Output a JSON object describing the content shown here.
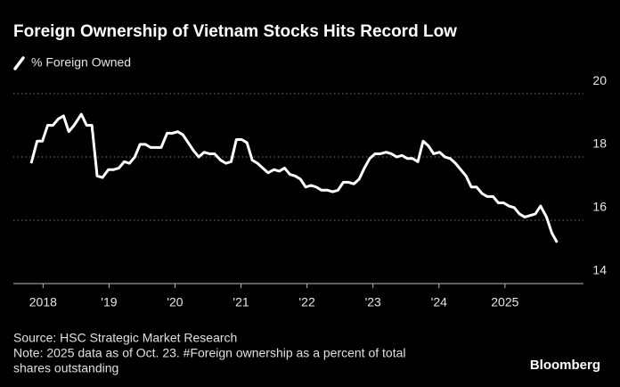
{
  "chart_data": {
    "type": "line",
    "title": "Foreign Ownership of Vietnam Stocks Hits Record Low",
    "source": "Source: HSC Strategic Market Research",
    "notes": [
      "Note: 2025 data as of Oct. 23. #Foreign ownership as a percent of total",
      "shares outstanding"
    ],
    "brand": "Bloomberg",
    "x": [
      2017.82,
      2017.91,
      2017.99,
      2018.07,
      2018.15,
      2018.23,
      2018.31,
      2018.39,
      2018.47,
      2018.58,
      2018.66,
      2018.74,
      2018.82,
      2018.9,
      2018.99,
      2019.07,
      2019.15,
      2019.23,
      2019.31,
      2019.39,
      2019.47,
      2019.55,
      2019.63,
      2019.71,
      2019.79,
      2019.88,
      2019.96,
      2020.04,
      2020.12,
      2020.2,
      2020.28,
      2020.36,
      2020.44,
      2020.52,
      2020.6,
      2020.69,
      2020.77,
      2020.85,
      2020.93,
      2021.01,
      2021.09,
      2021.17,
      2021.25,
      2021.33,
      2021.41,
      2021.5,
      2021.58,
      2021.66,
      2021.74,
      2021.82,
      2021.9,
      2021.98,
      2022.06,
      2022.14,
      2022.22,
      2022.31,
      2022.39,
      2022.47,
      2022.55,
      2022.63,
      2022.71,
      2022.79,
      2022.87,
      2022.95,
      2023.03,
      2023.11,
      2023.2,
      2023.28,
      2023.36,
      2023.44,
      2023.52,
      2023.6,
      2023.68,
      2023.76,
      2023.84,
      2023.92,
      2024.01,
      2024.09,
      2024.17,
      2024.25,
      2024.33,
      2024.41,
      2024.49,
      2024.57,
      2024.65,
      2024.73,
      2024.82,
      2024.9,
      2024.98,
      2025.06,
      2025.14,
      2025.22,
      2025.3,
      2025.38,
      2025.46,
      2025.54,
      2025.63,
      2025.71,
      2025.79
    ],
    "series": [
      {
        "name": "% Foreign Owned",
        "color": "#ffffff",
        "values": [
          17.8,
          18.5,
          18.5,
          19.0,
          19.0,
          19.2,
          19.3,
          18.8,
          19.0,
          19.35,
          19.0,
          19.0,
          17.4,
          17.35,
          17.6,
          17.6,
          17.65,
          17.85,
          17.8,
          18.0,
          18.4,
          18.4,
          18.3,
          18.3,
          18.3,
          18.75,
          18.75,
          18.8,
          18.7,
          18.45,
          18.2,
          18.0,
          18.15,
          18.1,
          18.1,
          17.9,
          17.8,
          17.85,
          18.55,
          18.55,
          18.45,
          17.9,
          17.8,
          17.65,
          17.5,
          17.6,
          17.55,
          17.65,
          17.45,
          17.4,
          17.3,
          17.05,
          17.1,
          17.05,
          16.95,
          16.95,
          16.9,
          16.95,
          17.2,
          17.2,
          17.15,
          17.3,
          17.65,
          17.95,
          18.1,
          18.1,
          18.15,
          18.1,
          18.0,
          18.05,
          17.95,
          17.95,
          17.85,
          18.5,
          18.35,
          18.1,
          18.15,
          18.0,
          17.95,
          17.8,
          17.6,
          17.4,
          17.05,
          17.05,
          16.85,
          16.75,
          16.75,
          16.55,
          16.55,
          16.45,
          16.4,
          16.2,
          16.1,
          16.15,
          16.2,
          16.45,
          16.1,
          15.6,
          15.3
        ]
      }
    ],
    "xlim": [
      2017.55,
      2026.19
    ],
    "xticks": [
      2018,
      {
        "value": 2019,
        "label": "'19"
      },
      {
        "value": 2020,
        "label": "'20"
      },
      {
        "value": 2021,
        "label": "'21"
      },
      {
        "value": 2022,
        "label": "'22"
      },
      {
        "value": 2023,
        "label": "'23"
      },
      {
        "value": 2024,
        "label": "'24"
      },
      {
        "value": 2025,
        "label": "2025"
      }
    ],
    "ylim": [
      14,
      20.3
    ],
    "yticks": [
      14,
      16,
      18,
      20
    ],
    "grid": true
  }
}
